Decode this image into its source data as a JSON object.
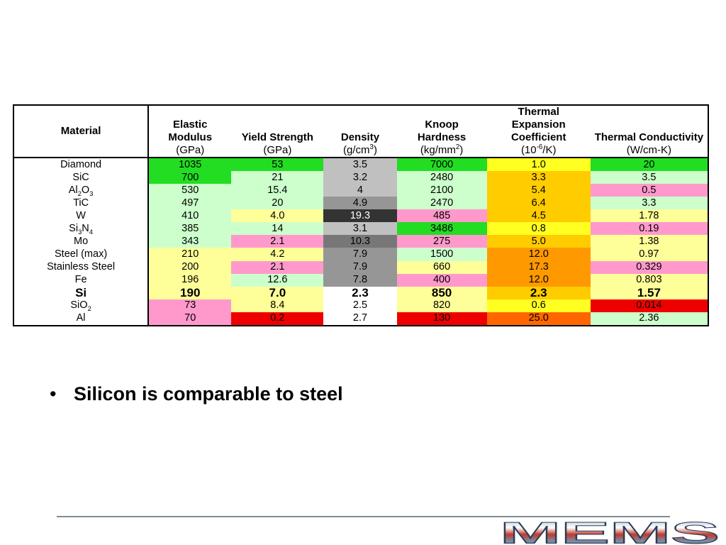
{
  "table": {
    "headers": [
      {
        "title": "Material",
        "unit": ""
      },
      {
        "title": "Elastic Modulus",
        "unit": "(GPa)"
      },
      {
        "title": "Yield Strength",
        "unit": "(GPa)"
      },
      {
        "title": "Density",
        "unit": "(g/cm3)"
      },
      {
        "title": "Knoop Hardness",
        "unit": "(kg/mm2)"
      },
      {
        "title": "Thermal Expansion Coefficient",
        "unit": "(10-6/K)"
      },
      {
        "title": "Thermal Conductivity",
        "unit": "(W/cm-K)"
      }
    ],
    "rows": [
      {
        "material": "Diamond",
        "values": [
          "1035",
          "53",
          "3.5",
          "7000",
          "1.0",
          "20"
        ],
        "colors": [
          "#22dd22",
          "#22dd22",
          "#c0c0c0",
          "#22dd22",
          "#ffff22",
          "#22dd22"
        ]
      },
      {
        "material": "SiC",
        "values": [
          "700",
          "21",
          "3.2",
          "2480",
          "3.3",
          "3.5"
        ],
        "colors": [
          "#22dd22",
          "#ccffcc",
          "#c0c0c0",
          "#ccffcc",
          "#ffcc00",
          "#ccffcc"
        ]
      },
      {
        "material": "Al2O3",
        "values": [
          "530",
          "15.4",
          "4",
          "2100",
          "5.4",
          "0.5"
        ],
        "colors": [
          "#ccffcc",
          "#ccffcc",
          "#c0c0c0",
          "#ccffcc",
          "#ffcc00",
          "#ff99cc"
        ]
      },
      {
        "material": "TiC",
        "values": [
          "497",
          "20",
          "4.9",
          "2470",
          "6.4",
          "3.3"
        ],
        "colors": [
          "#ccffcc",
          "#ccffcc",
          "#969696",
          "#ccffcc",
          "#ffcc00",
          "#ccffcc"
        ]
      },
      {
        "material": "W",
        "values": [
          "410",
          "4.0",
          "19.3",
          "485",
          "4.5",
          "1.78"
        ],
        "colors": [
          "#ccffcc",
          "#ffff99",
          "#333333",
          "#ff99cc",
          "#ffcc00",
          "#ffff99"
        ]
      },
      {
        "material": "Si3N4",
        "values": [
          "385",
          "14",
          "3.1",
          "3486",
          "0.8",
          "0.19"
        ],
        "colors": [
          "#ccffcc",
          "#ccffcc",
          "#c0c0c0",
          "#22dd22",
          "#ffff22",
          "#ff99cc"
        ]
      },
      {
        "material": "Mo",
        "values": [
          "343",
          "2.1",
          "10.3",
          "275",
          "5.0",
          "1.38"
        ],
        "colors": [
          "#ccffcc",
          "#ff99cc",
          "#777777",
          "#ff99cc",
          "#ffcc00",
          "#ffff99"
        ]
      },
      {
        "material": "Steel (max)",
        "values": [
          "210",
          "4.2",
          "7.9",
          "1500",
          "12.0",
          "0.97"
        ],
        "colors": [
          "#ffff99",
          "#ffff99",
          "#969696",
          "#ccffcc",
          "#ff9900",
          "#ffff99"
        ]
      },
      {
        "material": "Stainless Steel",
        "values": [
          "200",
          "2.1",
          "7.9",
          "660",
          "17.3",
          "0.329"
        ],
        "colors": [
          "#ffff99",
          "#ff99cc",
          "#969696",
          "#ffff99",
          "#ff9900",
          "#ff99cc"
        ]
      },
      {
        "material": "Fe",
        "values": [
          "196",
          "12.6",
          "7.8",
          "400",
          "12.0",
          "0.803"
        ],
        "colors": [
          "#ffff99",
          "#ccffcc",
          "#969696",
          "#ff99cc",
          "#ff9900",
          "#ffff99"
        ]
      },
      {
        "material": "Si",
        "values": [
          "190",
          "7.0",
          "2.3",
          "850",
          "2.3",
          "1.57"
        ],
        "colors": [
          "#ffff99",
          "#ffff99",
          "#ffffff",
          "#ffff99",
          "#ffcc00",
          "#ffff99"
        ]
      },
      {
        "material": "SiO2",
        "values": [
          "73",
          "8.4",
          "2.5",
          "820",
          "0.6",
          "0.014"
        ],
        "colors": [
          "#ff99cc",
          "#ffff99",
          "#ffffff",
          "#ffff99",
          "#ffff22",
          "#ee0000"
        ]
      },
      {
        "material": "Al",
        "values": [
          "70",
          "0.2",
          "2.7",
          "130",
          "25.0",
          "2.36"
        ],
        "colors": [
          "#ff99cc",
          "#ee0000",
          "#ffffff",
          "#ee0000",
          "#ff6600",
          "#ccffcc"
        ]
      }
    ]
  },
  "bullets": [
    "Silicon is comparable to steel"
  ],
  "logo": {
    "text": "MEMS"
  }
}
